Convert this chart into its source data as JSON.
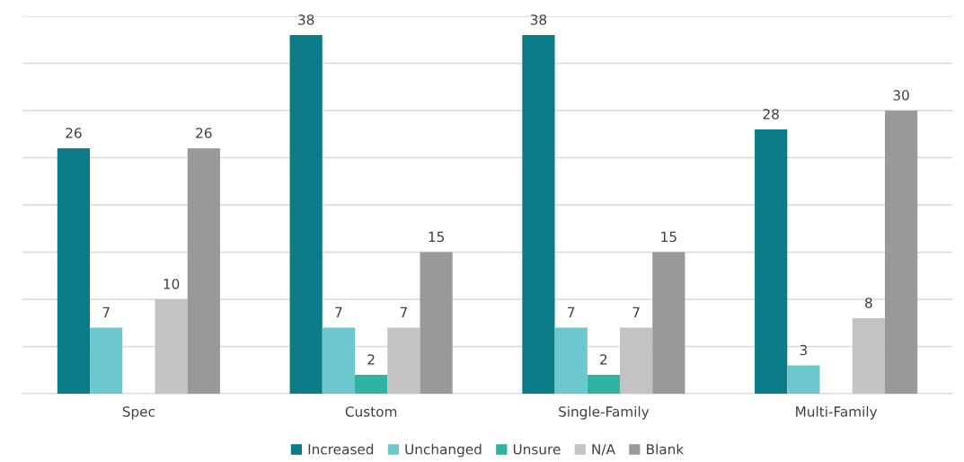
{
  "chart_data": {
    "type": "bar",
    "categories": [
      "Spec",
      "Custom",
      "Single-Family",
      "Multi-Family"
    ],
    "series": [
      {
        "name": "Increased",
        "color": "#0b7c87",
        "values": [
          26,
          38,
          38,
          28
        ]
      },
      {
        "name": "Unchanged",
        "color": "#6cc8cc",
        "values": [
          7,
          7,
          7,
          3
        ]
      },
      {
        "name": "Unsure",
        "color": "#2fb3a3",
        "values": [
          null,
          2,
          2,
          null
        ]
      },
      {
        "name": "N/A",
        "color": "#c3c3c3",
        "values": [
          10,
          7,
          7,
          8
        ]
      },
      {
        "name": "Blank",
        "color": "#999999",
        "values": [
          26,
          15,
          15,
          30
        ]
      }
    ],
    "ylim": [
      0,
      40
    ],
    "yticks": [
      {
        "value": 0,
        "label": null
      },
      {
        "value": 5,
        "label": null
      },
      {
        "value": 10,
        "label": null
      },
      {
        "value": 15,
        "label": null
      },
      {
        "value": 20,
        "label": null
      },
      {
        "value": 25,
        "label": null
      },
      {
        "value": 30,
        "label": null
      },
      {
        "value": 35,
        "label": null
      },
      {
        "value": 40,
        "label": null
      }
    ],
    "tick_labels": "x",
    "grid": "y",
    "legend": "bottom",
    "data_labels": true
  }
}
